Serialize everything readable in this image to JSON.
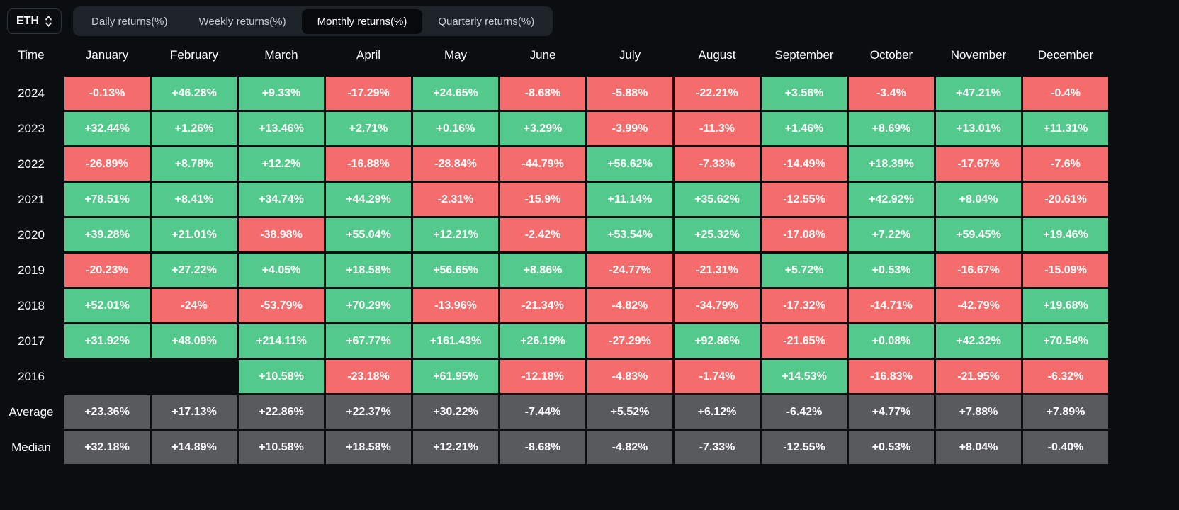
{
  "asset_selector": {
    "value": "ETH",
    "icon": "updown-chevron"
  },
  "tabs": [
    {
      "label": "Daily returns(%)",
      "active": false
    },
    {
      "label": "Weekly returns(%)",
      "active": false
    },
    {
      "label": "Monthly returns(%)",
      "active": true
    },
    {
      "label": "Quarterly returns(%)",
      "active": false
    }
  ],
  "colors": {
    "background": "#0b0e11",
    "positive": "#54c98c",
    "negative": "#f56c6c",
    "summary": "#595a5e"
  },
  "chart_data": {
    "type": "heatmap",
    "title": "ETH Monthly returns(%)",
    "time_header": "Time",
    "months": [
      "January",
      "February",
      "March",
      "April",
      "May",
      "June",
      "July",
      "August",
      "September",
      "October",
      "November",
      "December"
    ],
    "rows": [
      {
        "label": "2024",
        "type": "year",
        "cells": [
          "-0.13%",
          "+46.28%",
          "+9.33%",
          "-17.29%",
          "+24.65%",
          "-8.68%",
          "-5.88%",
          "-22.21%",
          "+3.56%",
          "-3.4%",
          "+47.21%",
          "-0.4%"
        ]
      },
      {
        "label": "2023",
        "type": "year",
        "cells": [
          "+32.44%",
          "+1.26%",
          "+13.46%",
          "+2.71%",
          "+0.16%",
          "+3.29%",
          "-3.99%",
          "-11.3%",
          "+1.46%",
          "+8.69%",
          "+13.01%",
          "+11.31%"
        ]
      },
      {
        "label": "2022",
        "type": "year",
        "cells": [
          "-26.89%",
          "+8.78%",
          "+12.2%",
          "-16.88%",
          "-28.84%",
          "-44.79%",
          "+56.62%",
          "-7.33%",
          "-14.49%",
          "+18.39%",
          "-17.67%",
          "-7.6%"
        ]
      },
      {
        "label": "2021",
        "type": "year",
        "cells": [
          "+78.51%",
          "+8.41%",
          "+34.74%",
          "+44.29%",
          "-2.31%",
          "-15.9%",
          "+11.14%",
          "+35.62%",
          "-12.55%",
          "+42.92%",
          "+8.04%",
          "-20.61%"
        ]
      },
      {
        "label": "2020",
        "type": "year",
        "cells": [
          "+39.28%",
          "+21.01%",
          "-38.98%",
          "+55.04%",
          "+12.21%",
          "-2.42%",
          "+53.54%",
          "+25.32%",
          "-17.08%",
          "+7.22%",
          "+59.45%",
          "+19.46%"
        ]
      },
      {
        "label": "2019",
        "type": "year",
        "cells": [
          "-20.23%",
          "+27.22%",
          "+4.05%",
          "+18.58%",
          "+56.65%",
          "+8.86%",
          "-24.77%",
          "-21.31%",
          "+5.72%",
          "+0.53%",
          "-16.67%",
          "-15.09%"
        ]
      },
      {
        "label": "2018",
        "type": "year",
        "cells": [
          "+52.01%",
          "-24%",
          "-53.79%",
          "+70.29%",
          "-13.96%",
          "-21.34%",
          "-4.82%",
          "-34.79%",
          "-17.32%",
          "-14.71%",
          "-42.79%",
          "+19.68%"
        ]
      },
      {
        "label": "2017",
        "type": "year",
        "cells": [
          "+31.92%",
          "+48.09%",
          "+214.11%",
          "+67.77%",
          "+161.43%",
          "+26.19%",
          "-27.29%",
          "+92.86%",
          "-21.65%",
          "+0.08%",
          "+42.32%",
          "+70.54%"
        ]
      },
      {
        "label": "2016",
        "type": "year",
        "cells": [
          "",
          "",
          "+10.58%",
          "-23.18%",
          "+61.95%",
          "-12.18%",
          "-4.83%",
          "-1.74%",
          "+14.53%",
          "-16.83%",
          "-21.95%",
          "-6.32%"
        ]
      },
      {
        "label": "Average",
        "type": "summary",
        "cells": [
          "+23.36%",
          "+17.13%",
          "+22.86%",
          "+22.37%",
          "+30.22%",
          "-7.44%",
          "+5.52%",
          "+6.12%",
          "-6.42%",
          "+4.77%",
          "+7.88%",
          "+7.89%"
        ]
      },
      {
        "label": "Median",
        "type": "summary",
        "cells": [
          "+32.18%",
          "+14.89%",
          "+10.58%",
          "+18.58%",
          "+12.21%",
          "-8.68%",
          "-4.82%",
          "-7.33%",
          "-12.55%",
          "+0.53%",
          "+8.04%",
          "-0.40%"
        ]
      }
    ]
  }
}
